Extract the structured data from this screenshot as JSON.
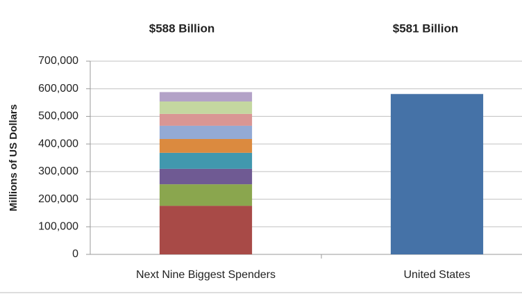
{
  "chart_data": {
    "type": "stacked-bar",
    "categories": [
      "Next Nine Biggest Spenders",
      "United States"
    ],
    "annotations": [
      "$588 Billion",
      "$581 Billion"
    ],
    "y_label": "Millions of US Dollars",
    "series": [
      {
        "color": "#a84a47",
        "values": [
          176000,
          null
        ]
      },
      {
        "color": "#8aa64e",
        "values": [
          78000,
          null
        ]
      },
      {
        "color": "#6f5a93",
        "values": [
          56000,
          null
        ]
      },
      {
        "color": "#4198ae",
        "values": [
          58000,
          null
        ]
      },
      {
        "color": "#db8a3f",
        "values": [
          50000,
          null
        ]
      },
      {
        "color": "#93aad5",
        "values": [
          48000,
          null
        ]
      },
      {
        "color": "#d99694",
        "values": [
          43000,
          null
        ]
      },
      {
        "color": "#c4d7a0",
        "values": [
          45000,
          null
        ]
      },
      {
        "color": "#b3a2c7",
        "values": [
          34000,
          null
        ]
      },
      {
        "color": "#4572a7",
        "values": [
          null,
          581000
        ]
      }
    ],
    "ylim": [
      0,
      700000
    ],
    "yticks": [
      0,
      {
        "value": 100000,
        "label": "100,000"
      },
      {
        "value": 200000,
        "label": "200,000"
      },
      {
        "value": 300000,
        "label": "300,000"
      },
      {
        "value": 400000,
        "label": "400,000"
      },
      {
        "value": 500000,
        "label": "500,000"
      },
      {
        "value": 600000,
        "label": "600,000"
      },
      {
        "value": 700000,
        "label": "700,000"
      }
    ],
    "grid": true
  }
}
